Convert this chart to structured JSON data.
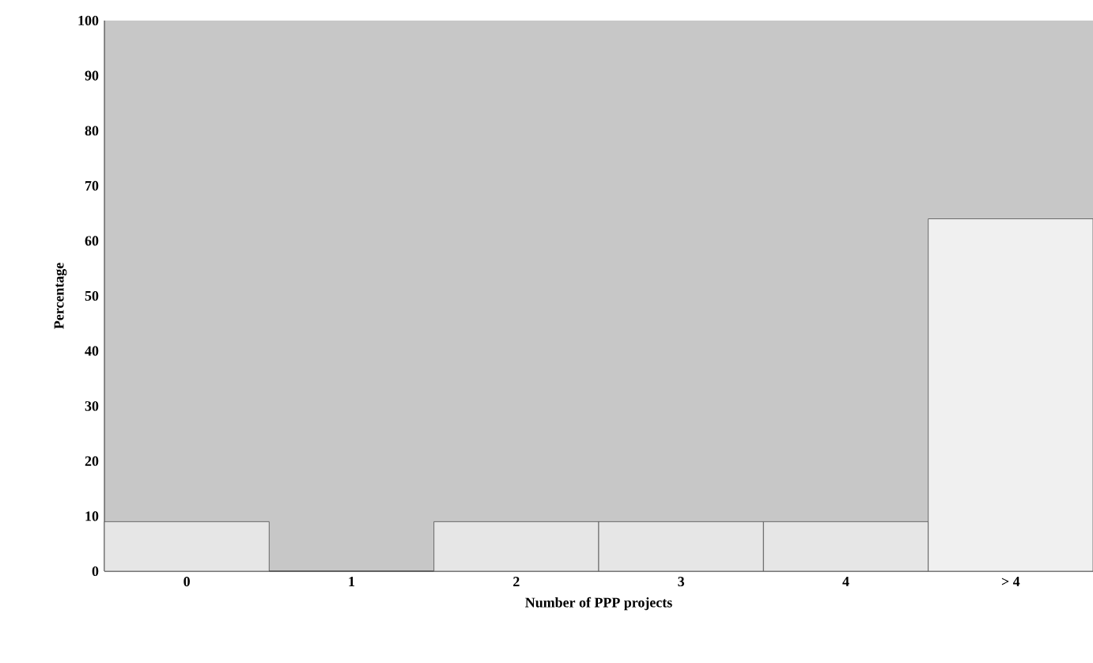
{
  "chart_data": {
    "type": "bar",
    "xlabel": "Number of PPP projects",
    "ylabel": "Percentage",
    "categories": [
      "0",
      "1",
      "2",
      "3",
      "4",
      "> 4"
    ],
    "values": [
      9,
      0,
      9,
      9,
      9,
      64
    ],
    "colors": [
      "#e6e6e6",
      "#e6e6e6",
      "#e6e6e6",
      "#e6e6e6",
      "#e6e6e6",
      "#f0f0f0"
    ],
    "ylim": [
      0,
      100
    ],
    "yticks": [
      0,
      10,
      20,
      30,
      40,
      50,
      60,
      70,
      80,
      90,
      100
    ]
  }
}
